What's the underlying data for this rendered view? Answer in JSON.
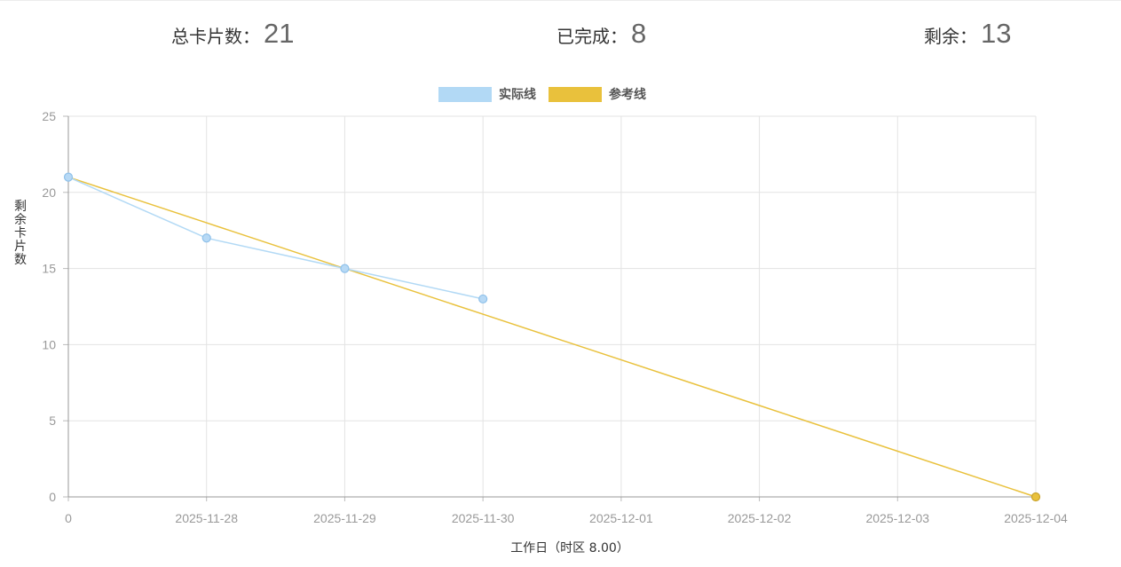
{
  "stats": {
    "total_label": "总卡片数：",
    "total_value": "21",
    "done_label": "已完成：",
    "done_value": "8",
    "remain_label": "剩余：",
    "remain_value": "13"
  },
  "chart_data": {
    "type": "line",
    "title": "",
    "xlabel": "工作日（时区 8.00）",
    "ylabel": "剩余卡片数",
    "categories": [
      "0",
      "2025-11-28",
      "2025-11-29",
      "2025-11-30",
      "2025-12-01",
      "2025-12-02",
      "2025-12-03",
      "2025-12-04"
    ],
    "ylim": [
      0,
      25
    ],
    "yticks": [
      "0",
      "5",
      "10",
      "15",
      "20",
      "25"
    ],
    "grid": true,
    "legend_position": "top-center",
    "series": [
      {
        "name": "实际线",
        "color": "#b2d9f5",
        "values": [
          21,
          17,
          15,
          13,
          null,
          null,
          null,
          null
        ],
        "point_indices": [
          0,
          1,
          2,
          3
        ]
      },
      {
        "name": "参考线",
        "color": "#e9c13c",
        "values": [
          21,
          18,
          15,
          12,
          9,
          6,
          3,
          0
        ],
        "point_indices": [
          7
        ]
      }
    ]
  }
}
